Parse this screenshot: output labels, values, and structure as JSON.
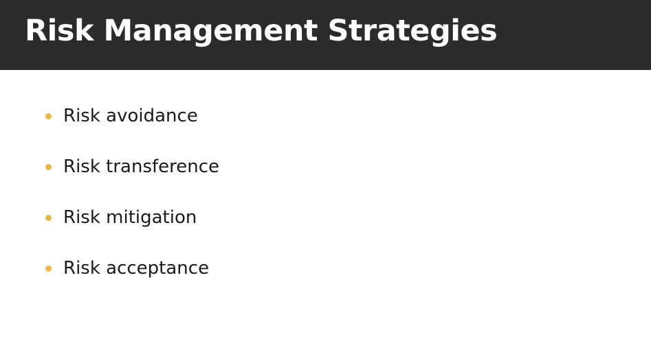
{
  "slide": {
    "title": "Risk Management Strategies",
    "bullet_color": "#e8b84a",
    "header_color": "#2b2b2b",
    "bullets": [
      {
        "text": "Risk avoidance"
      },
      {
        "text": "Risk transference"
      },
      {
        "text": "Risk mitigation"
      },
      {
        "text": "Risk acceptance"
      }
    ]
  }
}
